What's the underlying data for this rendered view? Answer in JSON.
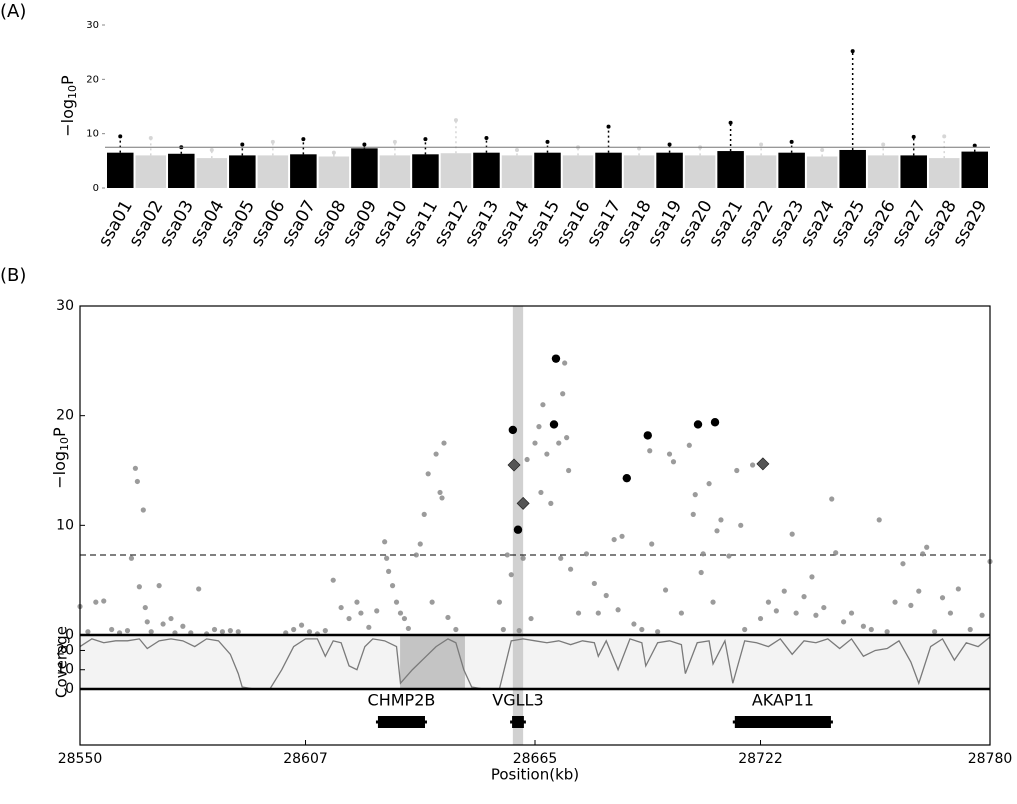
{
  "chart_data": [
    {
      "type": "manhattan",
      "panel_label": "(A)",
      "ylabel": [
        "−log",
        "10",
        "P"
      ],
      "categories": [
        "ssa01",
        "ssa02",
        "ssa03",
        "ssa04",
        "ssa05",
        "ssa06",
        "ssa07",
        "ssa08",
        "ssa09",
        "ssa10",
        "ssa11",
        "ssa12",
        "ssa13",
        "ssa14",
        "ssa15",
        "ssa16",
        "ssa17",
        "ssa18",
        "ssa19",
        "ssa20",
        "ssa21",
        "ssa22",
        "ssa23",
        "ssa24",
        "ssa25",
        "ssa26",
        "ssa27",
        "ssa28",
        "ssa29"
      ],
      "values": [
        9.5,
        9.2,
        7.5,
        7,
        8,
        8.5,
        9,
        6.5,
        8,
        8.5,
        9,
        12.5,
        9.2,
        7,
        8.5,
        7.5,
        11.3,
        7.3,
        8,
        7.5,
        12,
        8,
        8.5,
        7,
        25.2,
        8,
        9.4,
        9.5,
        7.8
      ],
      "bulk": [
        6.5,
        6,
        6.3,
        5.5,
        6,
        6,
        6.2,
        5.8,
        7.3,
        6,
        6.2,
        6.4,
        6.5,
        6,
        6.5,
        6,
        6.5,
        6,
        6.5,
        6,
        6.8,
        6,
        6.5,
        5.8,
        7,
        6,
        6,
        5.5,
        6.7
      ],
      "colors": [
        "#000000",
        "#d6d6d6"
      ],
      "ylim": [
        0,
        30
      ],
      "yticks": [
        0,
        10,
        20,
        30
      ],
      "threshold": 7.5
    },
    {
      "type": "regional",
      "panel_label": "(B)",
      "ylabel": [
        "−log",
        "10",
        "P"
      ],
      "xlabel": "Position(kb)",
      "xlim": [
        28550,
        28780
      ],
      "xticks": [
        28550,
        28607,
        28665,
        28722,
        28780
      ],
      "ylim": [
        0,
        30
      ],
      "yticks": [
        0,
        10,
        20,
        30
      ],
      "threshold": 7.3,
      "highlight_x": [
        28659.4,
        28662.0
      ],
      "series": [
        {
          "marker": "circle",
          "color": "#8a8a8a",
          "size": 2.6,
          "x": [
            28550,
            28552,
            28554,
            28556,
            28558,
            28560,
            28562,
            28563,
            28564,
            28564.5,
            28565,
            28566,
            28566.5,
            28567,
            28568,
            28570,
            28571,
            28573,
            28574,
            28576,
            28578,
            28580,
            28582,
            28584,
            28586,
            28588,
            28590,
            28602,
            28604,
            28606,
            28608,
            28610,
            28612,
            28614,
            28616,
            28618,
            28620,
            28621,
            28623,
            28625,
            28627,
            28627.5,
            28628,
            28629,
            28630,
            28631,
            28632,
            28633,
            28635,
            28636,
            28637,
            28638,
            28639,
            28640,
            28641,
            28641.5,
            28642,
            28643,
            28645,
            28656,
            28657,
            28658,
            28659,
            28661,
            28662,
            28663,
            28664,
            28665,
            28666,
            28666.5,
            28667,
            28668,
            28669,
            28671,
            28671.5,
            28672,
            28672.5,
            28673,
            28673.5,
            28674,
            28676,
            28678,
            28680,
            28681,
            28683,
            28685,
            28686,
            28687,
            28690,
            28692,
            28694,
            28694.5,
            28696,
            28698,
            28699,
            28700,
            28702,
            28704,
            28705,
            28705.5,
            28707,
            28707.5,
            28709,
            28710,
            28711,
            28712,
            28714,
            28716,
            28717,
            28718,
            28720,
            28722,
            28724,
            28726,
            28728,
            28730,
            28731,
            28733,
            28735,
            28736,
            28738,
            28740,
            28741,
            28743,
            28745,
            28748,
            28750,
            28752,
            28754,
            28756,
            28758,
            28760,
            28762,
            28763,
            28764,
            28766,
            28768,
            28770,
            28772,
            28775,
            28778,
            28780
          ],
          "values": [
            2.6,
            0.3,
            3,
            3.1,
            0.5,
            0.2,
            0.4,
            7,
            15.2,
            14,
            4.4,
            11.4,
            2.5,
            1.2,
            0.3,
            4.5,
            1,
            1.5,
            0.2,
            0.8,
            0.2,
            4.2,
            0.1,
            0.5,
            0.3,
            0.4,
            0.3,
            0.2,
            0.5,
            0.9,
            0.3,
            0.1,
            0.4,
            5,
            2.5,
            1.5,
            3,
            2,
            0.7,
            2.2,
            8.5,
            7,
            5.8,
            4.5,
            3,
            2,
            1.5,
            0.6,
            7.3,
            8.3,
            11,
            14.7,
            3,
            16.5,
            13,
            12.5,
            17.5,
            1.6,
            0.5,
            3,
            0.5,
            7.3,
            5.5,
            0.4,
            7,
            16,
            1.5,
            17.5,
            19,
            13,
            21,
            16.5,
            12,
            17.5,
            7,
            22,
            24.8,
            18,
            15,
            6,
            2,
            7.4,
            4.7,
            2,
            3.6,
            8.7,
            2.3,
            9,
            1,
            0.5,
            16.8,
            8.3,
            0.3,
            4.1,
            16.5,
            15.8,
            2,
            17.3,
            11,
            12.8,
            5.7,
            7.4,
            13.8,
            3,
            9.5,
            10.5,
            7.2,
            15,
            10,
            0.5,
            15.5,
            1.5,
            3,
            2.2,
            4,
            9.2,
            2,
            3.5,
            5.3,
            1.8,
            2.5,
            12.4,
            7.5,
            1.2,
            2,
            0.8,
            0.5,
            10.5,
            0.3,
            3,
            6.5,
            2.7,
            4,
            7.4,
            8,
            0.3,
            3.4,
            2,
            4.2,
            0.5,
            1.8,
            6.7
          ]
        },
        {
          "marker": "circle",
          "color": "#000000",
          "size": 4.2,
          "x": [
            28659.4,
            28660.7,
            28670.3,
            28669.8,
            28688.2,
            28693.5,
            28706.2,
            28710.5
          ],
          "values": [
            18.7,
            9.6,
            25.2,
            19.2,
            14.3,
            18.2,
            19.2,
            19.4
          ]
        },
        {
          "marker": "diamond",
          "color": "#555555",
          "size": 6,
          "x": [
            28659.7,
            28662.0,
            28722.6
          ],
          "values": [
            15.5,
            12.0,
            15.6
          ]
        }
      ],
      "coverage": {
        "ylabel": "Coverage",
        "ylim": [
          0,
          27.5
        ],
        "yticks": [
          0,
          10,
          20
        ],
        "shaded_x": [
          28630.9,
          28647.3
        ],
        "x": [
          28550,
          28553,
          28556,
          28559,
          28562,
          28565,
          28567,
          28570,
          28573,
          28576,
          28579,
          28582,
          28585,
          28588,
          28590,
          28591,
          28594,
          28597,
          28598,
          28601,
          28604,
          28607,
          28610,
          28612,
          28614,
          28616,
          28618,
          28620,
          28622,
          28624,
          28627,
          28630,
          28631,
          28634,
          28637,
          28640,
          28643,
          28645,
          28647,
          28649,
          28652,
          28655,
          28656,
          28659,
          28662,
          28665,
          28668,
          28671,
          28674,
          28677,
          28680,
          28681,
          28683,
          28686,
          28689,
          28692,
          28693,
          28696,
          28699,
          28702,
          28703,
          28706,
          28709,
          28710,
          28713,
          28715,
          28718,
          28721,
          28724,
          28727,
          28730,
          28733,
          28736,
          28739,
          28742,
          28745,
          28748,
          28751,
          28754,
          28757,
          28760,
          28762,
          28765,
          28768,
          28771,
          28774,
          28777,
          28780
        ],
        "values": [
          22,
          26,
          24,
          25,
          25,
          26,
          21,
          25,
          26,
          25,
          22,
          26,
          25,
          18,
          8,
          1,
          0,
          0,
          0,
          10,
          22,
          26,
          26,
          17,
          25,
          24,
          12,
          10,
          22,
          26,
          25,
          22,
          3,
          10,
          16,
          22,
          26,
          24,
          10,
          1,
          0,
          0,
          0,
          25,
          26,
          25,
          24,
          25,
          23,
          25,
          24,
          17,
          25,
          10,
          26,
          24,
          12,
          24,
          25,
          23,
          8,
          24,
          25,
          13,
          25,
          3,
          25,
          24,
          22,
          26,
          18,
          25,
          24,
          26,
          21,
          26,
          17,
          20,
          21,
          25,
          14,
          3,
          22,
          26,
          15,
          24,
          22,
          27
        ]
      },
      "genes": [
        {
          "name": "CHMP2B",
          "start": 28624.8,
          "end": 28637.7
        },
        {
          "name": "VGLL3",
          "start": 28658.7,
          "end": 28662.7
        },
        {
          "name": "AKAP11",
          "start": 28715.0,
          "end": 28740.3
        }
      ]
    }
  ]
}
